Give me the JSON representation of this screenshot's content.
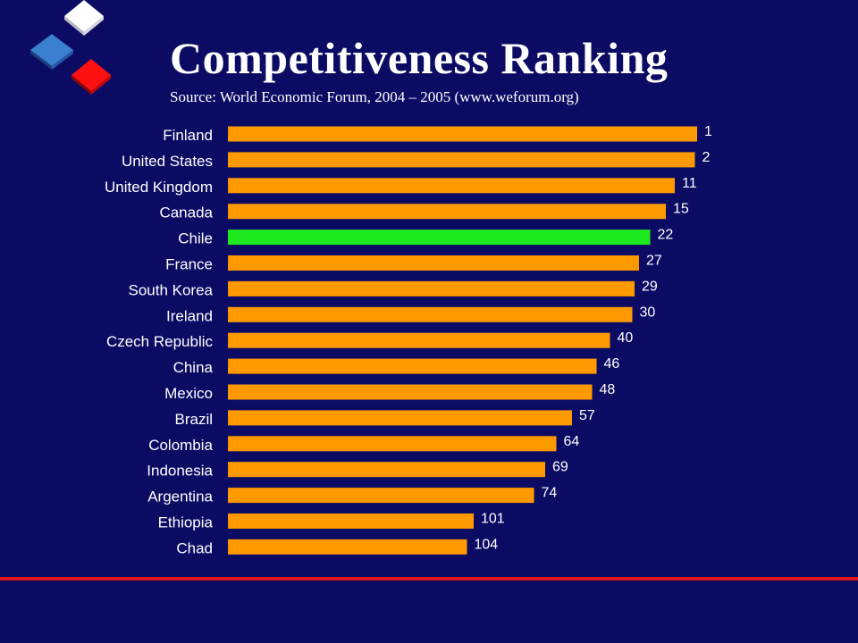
{
  "header": {
    "title": "Competitiveness Ranking",
    "subtitle": "Source: World Economic Forum, 2004 – 2005  (www.weforum.org)"
  },
  "colors": {
    "background": "#0b0b64",
    "bar": "#ff9900",
    "highlight_bar": "#1ee81e",
    "text": "#ffffff",
    "divider": "#e01818"
  },
  "chart_data": {
    "type": "bar",
    "orientation": "horizontal",
    "title": "Competitiveness Ranking",
    "subtitle": "Source: World Economic Forum, 2004 – 2005  (www.weforum.org)",
    "categories": [
      "Finland",
      "United States",
      "United Kingdom",
      "Canada",
      "Chile",
      "France",
      "South Korea",
      "Ireland",
      "Czech Republic",
      "China",
      "Mexico",
      "Brazil",
      "Colombia",
      "Indonesia",
      "Argentina",
      "Ethiopia",
      "Chad"
    ],
    "values": [
      1,
      2,
      11,
      15,
      22,
      27,
      29,
      30,
      40,
      46,
      48,
      57,
      64,
      69,
      74,
      101,
      104
    ],
    "bar_lengths": [
      105,
      104.5,
      100,
      98,
      94.5,
      92,
      91,
      90.5,
      85.5,
      82.5,
      81.5,
      77,
      73.5,
      71,
      68.5,
      55,
      53.5
    ],
    "highlight": "Chile",
    "xlabel": "",
    "ylabel": "",
    "grid": false,
    "legend": "none"
  }
}
